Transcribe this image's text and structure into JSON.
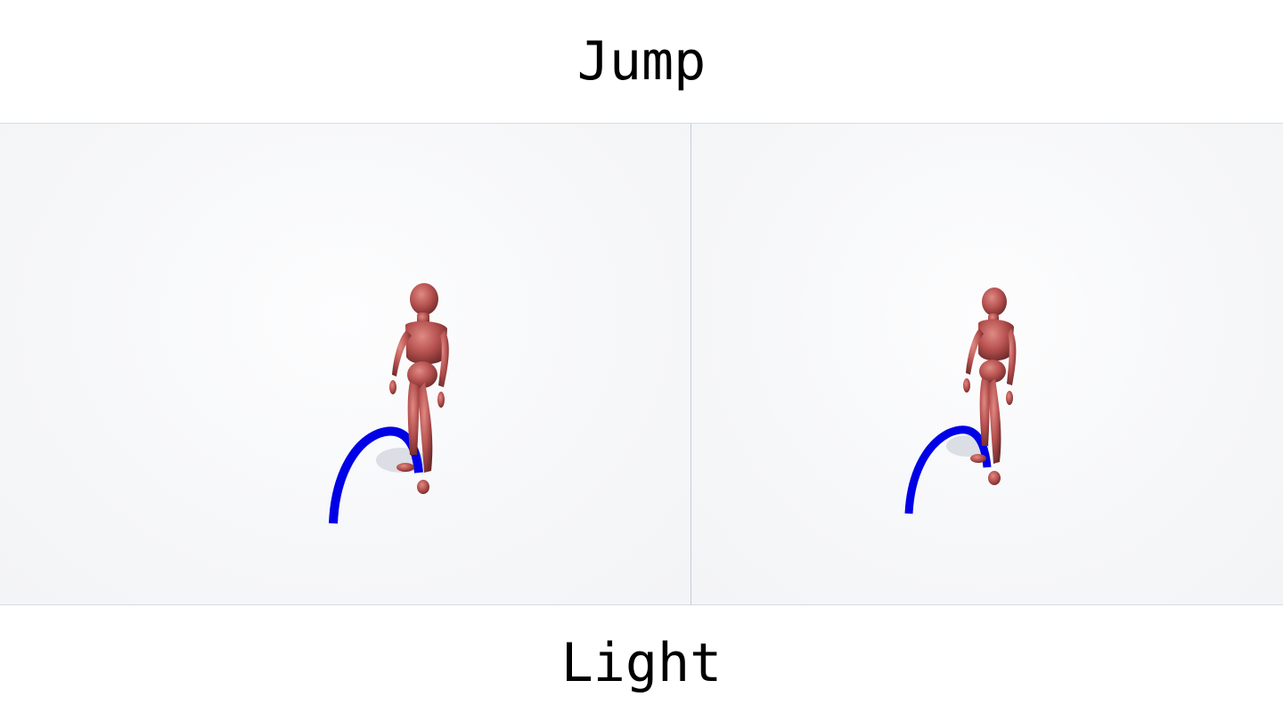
{
  "header": {
    "title": "Jump"
  },
  "footer": {
    "subtitle": "Light"
  },
  "colors": {
    "figure": "#b5514f",
    "arc": "#0000e6",
    "shadow": "#cfd3dc"
  },
  "panels": [
    {
      "name": "left-viewport",
      "figure": "humanoid-mannequin",
      "trajectory": "jump-arc"
    },
    {
      "name": "right-viewport",
      "figure": "humanoid-mannequin",
      "trajectory": "jump-arc"
    }
  ]
}
